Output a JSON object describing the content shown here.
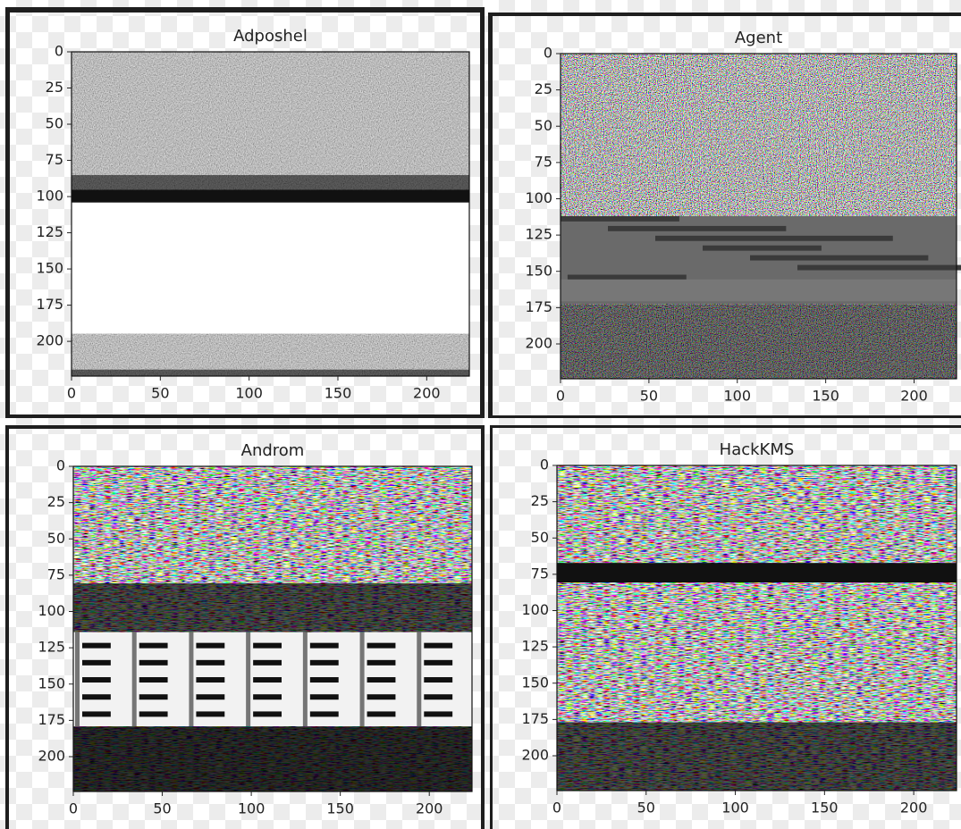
{
  "chart_data": [
    {
      "type": "image",
      "title": "Adposhel",
      "xlim": [
        0,
        224
      ],
      "ylim": [
        224,
        0
      ],
      "xticks": [
        0,
        50,
        100,
        150,
        200
      ],
      "yticks": [
        0,
        25,
        50,
        75,
        100,
        125,
        150,
        175,
        200
      ]
    },
    {
      "type": "image",
      "title": "Agent",
      "xlim": [
        0,
        224
      ],
      "ylim": [
        224,
        0
      ],
      "xticks": [
        0,
        50,
        100,
        150,
        200
      ],
      "yticks": [
        0,
        25,
        50,
        75,
        100,
        125,
        150,
        175,
        200
      ]
    },
    {
      "type": "image",
      "title": "Androm",
      "xlim": [
        0,
        224
      ],
      "ylim": [
        224,
        0
      ],
      "xticks": [
        0,
        50,
        100,
        150,
        200
      ],
      "yticks": [
        0,
        25,
        50,
        75,
        100,
        125,
        150,
        175,
        200
      ]
    },
    {
      "type": "image",
      "title": "HackKMS",
      "xlim": [
        0,
        224
      ],
      "ylim": [
        224,
        0
      ],
      "xticks": [
        0,
        50,
        100,
        150,
        200
      ],
      "yticks": [
        0,
        25,
        50,
        75,
        100,
        125,
        150,
        175,
        200
      ]
    }
  ]
}
